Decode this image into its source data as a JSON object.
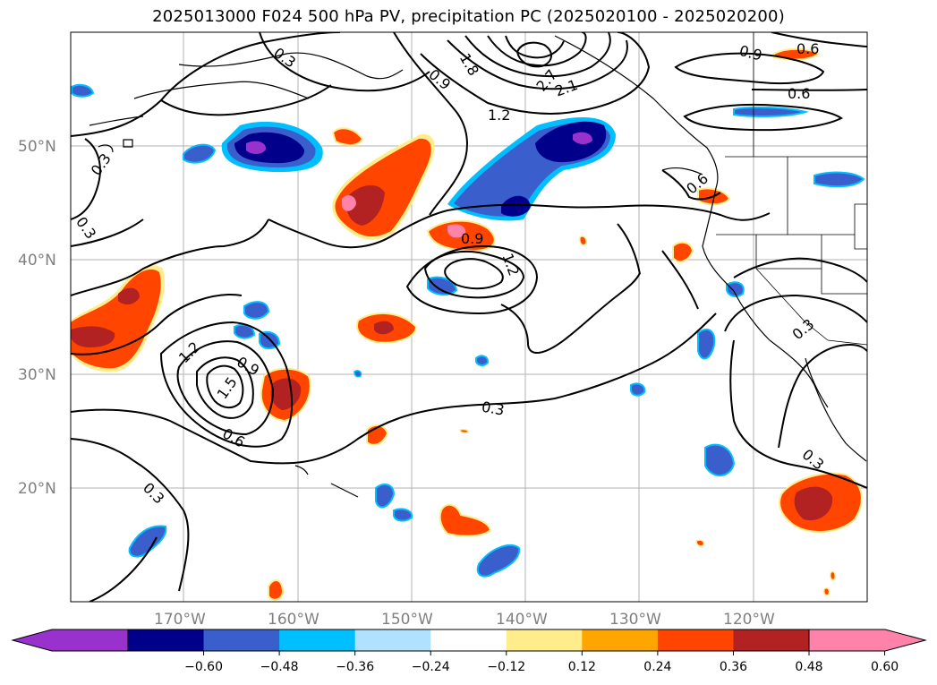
{
  "title": "2025013000 F024 500 hPa PV, precipitation PC (2025020100 - 2025020200)",
  "map": {
    "lat_labels": [
      "50°N",
      "40°N",
      "30°N",
      "20°N"
    ],
    "lon_labels": [
      "170°W",
      "160°W",
      "150°W",
      "140°W",
      "130°W",
      "120°W"
    ],
    "contour_labels": [
      "0.3",
      "0.3",
      "0.3",
      "0.3",
      "0.3",
      "0.3",
      "0.3",
      "0.6",
      "0.6",
      "0.6",
      "0.6",
      "0.9",
      "0.9",
      "0.9",
      "0.9",
      "1.2",
      "1.2",
      "1.2",
      "1.5",
      "1.8",
      "2.1",
      "2.7"
    ]
  },
  "colorbar": {
    "colors": [
      "#9932cc",
      "#00008b",
      "#3a5fcd",
      "#00bfff",
      "#b0e2ff",
      "#ffffff",
      "#ffec8b",
      "#ffa500",
      "#ff4500",
      "#b22222",
      "#ff82ab"
    ],
    "tick_labels": [
      "−0.60",
      "−0.48",
      "−0.36",
      "−0.24",
      "−0.12",
      "0.12",
      "0.24",
      "0.36",
      "0.48",
      "0.60"
    ]
  }
}
